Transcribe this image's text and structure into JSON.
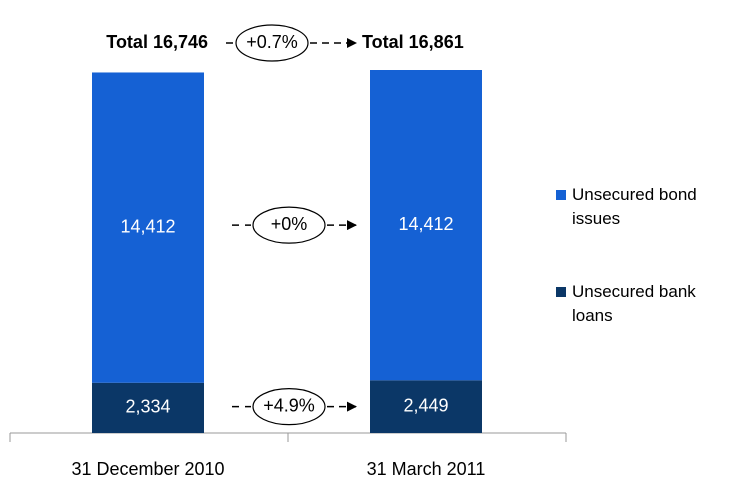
{
  "chart_data": {
    "type": "stacked_bar",
    "categories": [
      "31 December 2010",
      "31 March 2011"
    ],
    "series": [
      {
        "name": "Unsecured bank loans",
        "color": "#0b3767",
        "values": [
          2334,
          2449
        ],
        "value_labels": [
          "2,334",
          "2,449"
        ]
      },
      {
        "name": "Unsecured bond issues",
        "color": "#1561d4",
        "values": [
          14412,
          14412
        ],
        "value_labels": [
          "14,412",
          "14,412"
        ]
      }
    ],
    "totals": {
      "values": [
        16746,
        16861
      ],
      "value_labels": [
        "Total 16,746",
        "Total 16,861"
      ]
    },
    "annotations": [
      {
        "text": "+0.7%"
      },
      {
        "text": "+0%"
      },
      {
        "text": "+4.9%"
      }
    ]
  }
}
